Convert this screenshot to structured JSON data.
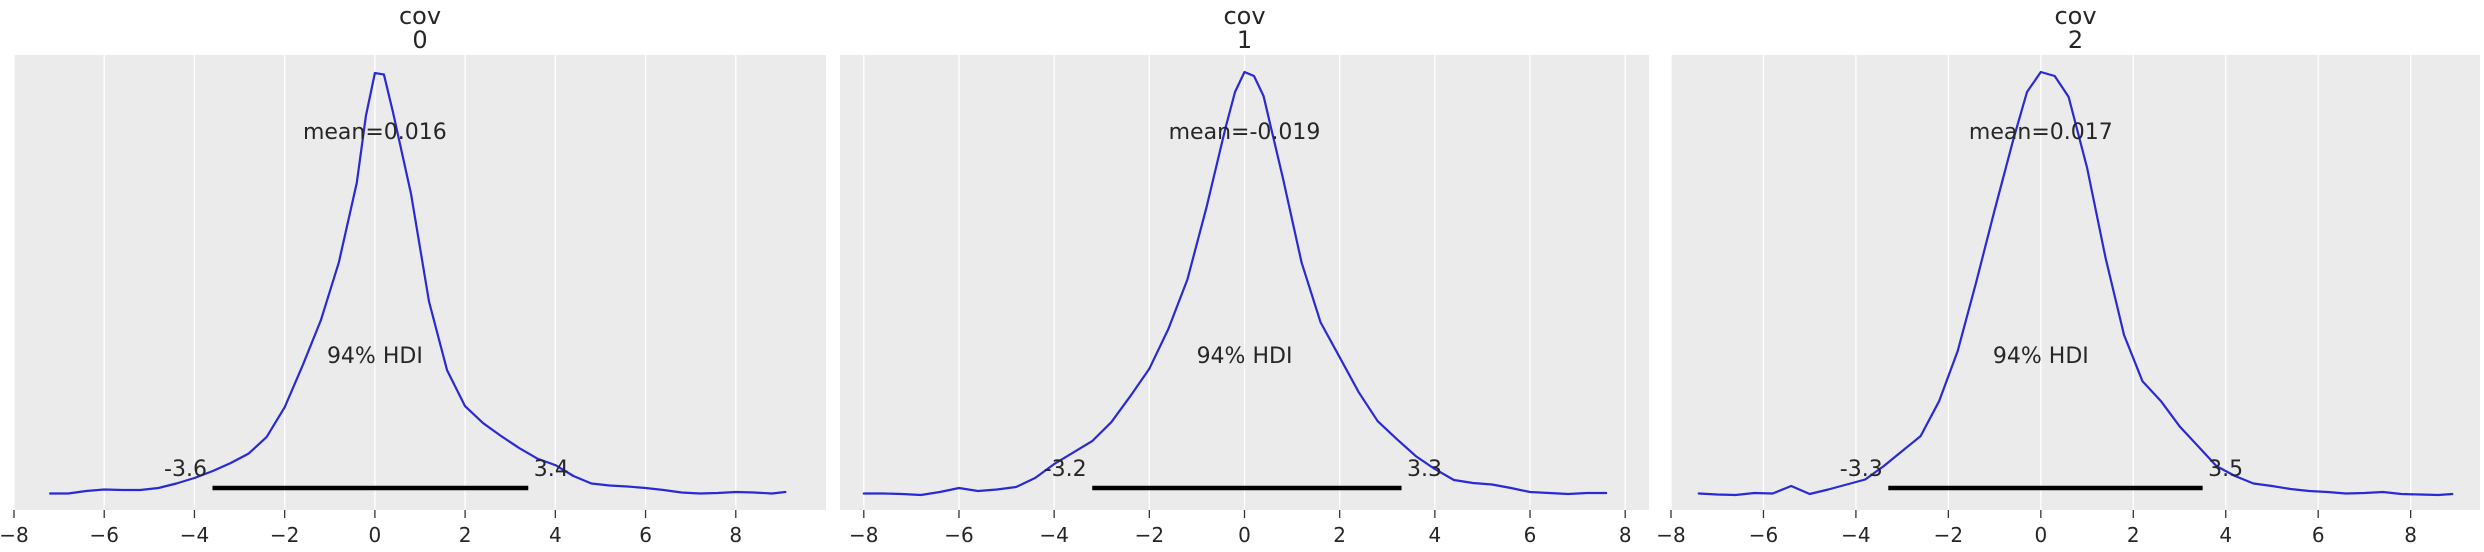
{
  "chart_data": [
    {
      "type": "line",
      "title_lines": [
        "cov",
        "0"
      ],
      "xlim": [
        -8,
        10
      ],
      "xticks": [
        -8,
        -6,
        -4,
        -2,
        0,
        2,
        4,
        6,
        8
      ],
      "tick_labels": [
        "−8",
        "−6",
        "−4",
        "−2",
        "0",
        "2",
        "4",
        "6",
        "8"
      ],
      "grid": true,
      "series": [
        {
          "color": "#2a2ad4",
          "x": [
            -7.2,
            -6.8,
            -6.4,
            -6.0,
            -5.6,
            -5.2,
            -4.8,
            -4.4,
            -4.0,
            -3.6,
            -3.2,
            -2.8,
            -2.4,
            -2.0,
            -1.6,
            -1.2,
            -0.8,
            -0.4,
            -0.2,
            0.0,
            0.2,
            0.4,
            0.8,
            1.2,
            1.6,
            2.0,
            2.4,
            2.8,
            3.2,
            3.6,
            4.0,
            4.4,
            4.8,
            5.2,
            5.6,
            6.0,
            6.4,
            6.8,
            7.2,
            7.6,
            8.0,
            8.4,
            8.8,
            9.1
          ],
          "y": [
            0.005,
            0.005,
            0.01,
            0.013,
            0.012,
            0.012,
            0.016,
            0.025,
            0.036,
            0.05,
            0.066,
            0.085,
            0.118,
            0.178,
            0.262,
            0.352,
            0.468,
            0.628,
            0.762,
            0.848,
            0.845,
            0.77,
            0.606,
            0.39,
            0.252,
            0.18,
            0.146,
            0.12,
            0.096,
            0.075,
            0.062,
            0.04,
            0.025,
            0.021,
            0.019,
            0.016,
            0.012,
            0.007,
            0.005,
            0.006,
            0.008,
            0.007,
            0.005,
            0.008
          ]
        }
      ],
      "mean_label": "mean=0.016",
      "hdi_label": "94% HDI",
      "hdi": [
        -3.6,
        3.4
      ],
      "hdi_low_label": "-3.6",
      "hdi_high_label": "3.4",
      "y_max": 0.85
    },
    {
      "type": "line",
      "title_lines": [
        "cov",
        "1"
      ],
      "xlim": [
        -8.5,
        8.5
      ],
      "xticks": [
        -8,
        -6,
        -4,
        -2,
        0,
        2,
        4,
        6,
        8
      ],
      "tick_labels": [
        "−8",
        "−6",
        "−4",
        "−2",
        "0",
        "2",
        "4",
        "6",
        "8"
      ],
      "grid": true,
      "series": [
        {
          "color": "#2a2ad4",
          "x": [
            -8.0,
            -7.6,
            -7.2,
            -6.8,
            -6.4,
            -6.0,
            -5.6,
            -5.2,
            -4.8,
            -4.4,
            -4.0,
            -3.6,
            -3.2,
            -2.8,
            -2.4,
            -2.0,
            -1.6,
            -1.2,
            -0.8,
            -0.4,
            -0.2,
            0.0,
            0.2,
            0.4,
            0.8,
            1.2,
            1.6,
            2.0,
            2.4,
            2.8,
            3.2,
            3.6,
            4.0,
            4.4,
            4.8,
            5.2,
            5.6,
            6.0,
            6.4,
            6.8,
            7.2,
            7.6
          ],
          "y": [
            0.005,
            0.005,
            0.004,
            0.002,
            0.008,
            0.016,
            0.01,
            0.013,
            0.018,
            0.036,
            0.064,
            0.087,
            0.11,
            0.148,
            0.2,
            0.255,
            0.335,
            0.434,
            0.578,
            0.738,
            0.81,
            0.85,
            0.842,
            0.802,
            0.64,
            0.468,
            0.348,
            0.278,
            0.208,
            0.15,
            0.114,
            0.08,
            0.054,
            0.032,
            0.026,
            0.023,
            0.016,
            0.008,
            0.006,
            0.004,
            0.006,
            0.006
          ]
        }
      ],
      "mean_label": "mean=-0.019",
      "hdi_label": "94% HDI",
      "hdi": [
        -3.2,
        3.3
      ],
      "hdi_low_label": "-3.2",
      "hdi_high_label": "3.3",
      "y_max": 0.85
    },
    {
      "type": "line",
      "title_lines": [
        "cov",
        "2"
      ],
      "xlim": [
        -8,
        9.5
      ],
      "xticks": [
        -8,
        -6,
        -4,
        -2,
        0,
        2,
        4,
        6,
        8
      ],
      "tick_labels": [
        "−8",
        "−6",
        "−4",
        "−2",
        "0",
        "2",
        "4",
        "6",
        "8"
      ],
      "grid": true,
      "series": [
        {
          "color": "#2a2ad4",
          "x": [
            -7.4,
            -7.0,
            -6.6,
            -6.2,
            -5.8,
            -5.4,
            -5.0,
            -4.6,
            -4.2,
            -3.8,
            -3.4,
            -3.0,
            -2.6,
            -2.2,
            -1.8,
            -1.4,
            -1.0,
            -0.6,
            -0.3,
            0.0,
            0.3,
            0.6,
            1.0,
            1.4,
            1.8,
            2.2,
            2.6,
            3.0,
            3.4,
            3.8,
            4.2,
            4.6,
            5.0,
            5.4,
            5.8,
            6.2,
            6.6,
            7.0,
            7.4,
            7.8,
            8.2,
            8.6,
            8.9
          ],
          "y": [
            0.005,
            0.003,
            0.002,
            0.006,
            0.005,
            0.02,
            0.004,
            0.013,
            0.023,
            0.033,
            0.06,
            0.09,
            0.12,
            0.19,
            0.29,
            0.428,
            0.573,
            0.713,
            0.81,
            0.85,
            0.842,
            0.8,
            0.658,
            0.478,
            0.323,
            0.23,
            0.19,
            0.14,
            0.1,
            0.06,
            0.04,
            0.025,
            0.02,
            0.014,
            0.01,
            0.008,
            0.005,
            0.006,
            0.008,
            0.004,
            0.003,
            0.002,
            0.004
          ]
        }
      ],
      "mean_label": "mean=0.017",
      "hdi_label": "94% HDI",
      "hdi": [
        -3.3,
        3.5
      ],
      "hdi_low_label": "-3.3",
      "hdi_high_label": "3.5",
      "y_max": 0.85
    }
  ]
}
